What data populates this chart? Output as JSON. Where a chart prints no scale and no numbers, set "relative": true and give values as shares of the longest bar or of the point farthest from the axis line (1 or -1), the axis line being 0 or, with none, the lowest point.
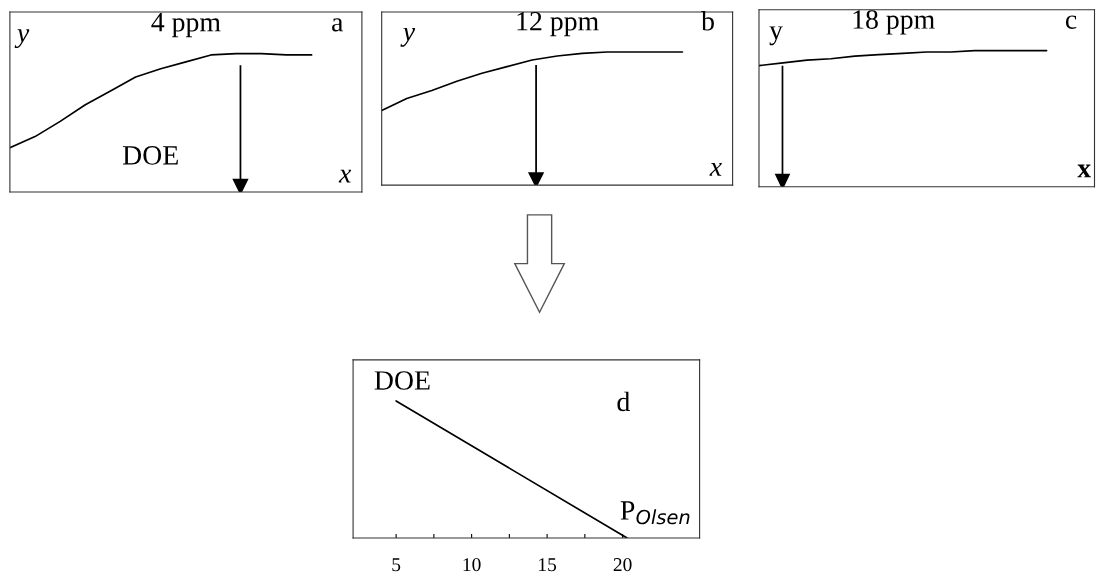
{
  "chart_data": [
    {
      "type": "line",
      "relative": true,
      "tick_labels": false,
      "categories": [
        null,
        null,
        null,
        null,
        null,
        null,
        null,
        null,
        null,
        null,
        null,
        null,
        null,
        null,
        null
      ],
      "series": [
        {
          "color": "#000000",
          "values": [
            0.32,
            0.4,
            0.51,
            0.63,
            0.73,
            0.83,
            0.89,
            0.94,
            0.99,
            1,
            1,
            0.99,
            0.99,
            null,
            null
          ]
        }
      ],
      "annotations": [
        "y",
        "4 ppm",
        "a",
        "DOE",
        "x"
      ]
    },
    {
      "type": "line",
      "relative": true,
      "tick_labels": false,
      "categories": [
        null,
        null,
        null,
        null,
        null,
        null,
        null,
        null,
        null,
        null,
        null,
        null,
        null,
        null,
        null
      ],
      "series": [
        {
          "color": "#000000",
          "values": [
            0.56,
            0.65,
            0.71,
            0.78,
            0.84,
            0.89,
            0.94,
            0.97,
            0.99,
            1,
            1,
            1,
            1,
            null,
            null
          ]
        }
      ],
      "annotations": [
        "y",
        "12 ppm",
        "b",
        "x"
      ]
    },
    {
      "type": "line",
      "relative": true,
      "tick_labels": false,
      "categories": [
        null,
        null,
        null,
        null,
        null,
        null,
        null,
        null,
        null,
        null,
        null,
        null,
        null,
        null,
        null
      ],
      "series": [
        {
          "color": "#000000",
          "values": [
            0.89,
            0.91,
            0.93,
            0.94,
            0.96,
            0.97,
            0.98,
            0.99,
            0.99,
            1,
            1,
            1,
            1,
            null,
            null
          ]
        }
      ],
      "annotations": [
        "y",
        "18 ppm",
        "c",
        "x"
      ]
    },
    {
      "type": "line",
      "relative": true,
      "tick_labels": "x",
      "x": [
        5,
        20.3
      ],
      "xlim": [
        2.15,
        25.1
      ],
      "xticks": [
        5,
        {
          "value": 7.5,
          "label": null
        },
        10,
        {
          "value": 12.5,
          "label": null
        },
        15,
        {
          "value": 17.5,
          "label": null
        },
        20
      ],
      "series": [
        {
          "color": "#000000",
          "values": [
            1,
            0
          ]
        }
      ],
      "annotations": [
        "DOE",
        "d",
        "P$_{Olsen}$"
      ]
    }
  ]
}
